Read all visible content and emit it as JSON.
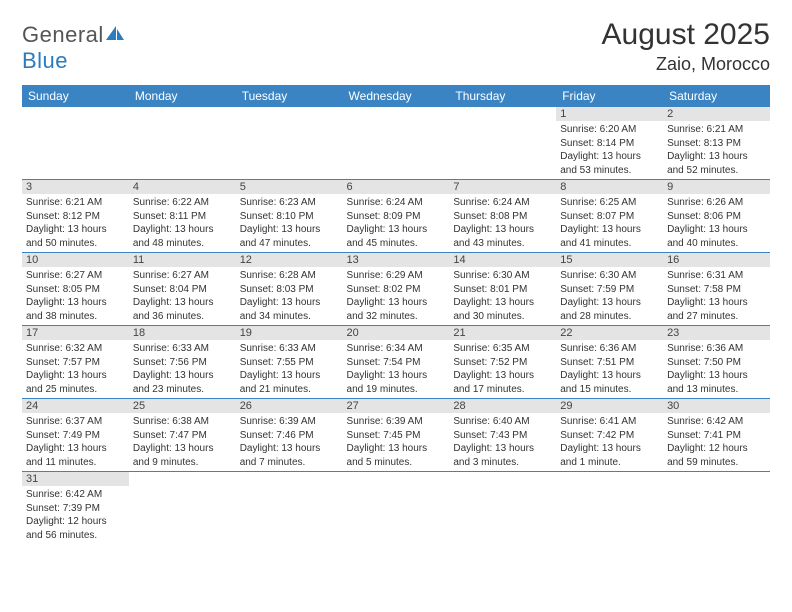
{
  "brand": {
    "text_a": "General",
    "text_b": "Blue"
  },
  "header": {
    "title": "August 2025",
    "location": "Zaio, Morocco"
  },
  "colors": {
    "accent": "#3a84c4",
    "daynum_bg": "#e4e4e4",
    "text": "#333333"
  },
  "dayNames": [
    "Sunday",
    "Monday",
    "Tuesday",
    "Wednesday",
    "Thursday",
    "Friday",
    "Saturday"
  ],
  "weeks": [
    [
      null,
      null,
      null,
      null,
      null,
      {
        "n": "1",
        "sr": "Sunrise: 6:20 AM",
        "ss": "Sunset: 8:14 PM",
        "dl": "Daylight: 13 hours and 53 minutes."
      },
      {
        "n": "2",
        "sr": "Sunrise: 6:21 AM",
        "ss": "Sunset: 8:13 PM",
        "dl": "Daylight: 13 hours and 52 minutes."
      }
    ],
    [
      {
        "n": "3",
        "sr": "Sunrise: 6:21 AM",
        "ss": "Sunset: 8:12 PM",
        "dl": "Daylight: 13 hours and 50 minutes."
      },
      {
        "n": "4",
        "sr": "Sunrise: 6:22 AM",
        "ss": "Sunset: 8:11 PM",
        "dl": "Daylight: 13 hours and 48 minutes."
      },
      {
        "n": "5",
        "sr": "Sunrise: 6:23 AM",
        "ss": "Sunset: 8:10 PM",
        "dl": "Daylight: 13 hours and 47 minutes."
      },
      {
        "n": "6",
        "sr": "Sunrise: 6:24 AM",
        "ss": "Sunset: 8:09 PM",
        "dl": "Daylight: 13 hours and 45 minutes."
      },
      {
        "n": "7",
        "sr": "Sunrise: 6:24 AM",
        "ss": "Sunset: 8:08 PM",
        "dl": "Daylight: 13 hours and 43 minutes."
      },
      {
        "n": "8",
        "sr": "Sunrise: 6:25 AM",
        "ss": "Sunset: 8:07 PM",
        "dl": "Daylight: 13 hours and 41 minutes."
      },
      {
        "n": "9",
        "sr": "Sunrise: 6:26 AM",
        "ss": "Sunset: 8:06 PM",
        "dl": "Daylight: 13 hours and 40 minutes."
      }
    ],
    [
      {
        "n": "10",
        "sr": "Sunrise: 6:27 AM",
        "ss": "Sunset: 8:05 PM",
        "dl": "Daylight: 13 hours and 38 minutes."
      },
      {
        "n": "11",
        "sr": "Sunrise: 6:27 AM",
        "ss": "Sunset: 8:04 PM",
        "dl": "Daylight: 13 hours and 36 minutes."
      },
      {
        "n": "12",
        "sr": "Sunrise: 6:28 AM",
        "ss": "Sunset: 8:03 PM",
        "dl": "Daylight: 13 hours and 34 minutes."
      },
      {
        "n": "13",
        "sr": "Sunrise: 6:29 AM",
        "ss": "Sunset: 8:02 PM",
        "dl": "Daylight: 13 hours and 32 minutes."
      },
      {
        "n": "14",
        "sr": "Sunrise: 6:30 AM",
        "ss": "Sunset: 8:01 PM",
        "dl": "Daylight: 13 hours and 30 minutes."
      },
      {
        "n": "15",
        "sr": "Sunrise: 6:30 AM",
        "ss": "Sunset: 7:59 PM",
        "dl": "Daylight: 13 hours and 28 minutes."
      },
      {
        "n": "16",
        "sr": "Sunrise: 6:31 AM",
        "ss": "Sunset: 7:58 PM",
        "dl": "Daylight: 13 hours and 27 minutes."
      }
    ],
    [
      {
        "n": "17",
        "sr": "Sunrise: 6:32 AM",
        "ss": "Sunset: 7:57 PM",
        "dl": "Daylight: 13 hours and 25 minutes."
      },
      {
        "n": "18",
        "sr": "Sunrise: 6:33 AM",
        "ss": "Sunset: 7:56 PM",
        "dl": "Daylight: 13 hours and 23 minutes."
      },
      {
        "n": "19",
        "sr": "Sunrise: 6:33 AM",
        "ss": "Sunset: 7:55 PM",
        "dl": "Daylight: 13 hours and 21 minutes."
      },
      {
        "n": "20",
        "sr": "Sunrise: 6:34 AM",
        "ss": "Sunset: 7:54 PM",
        "dl": "Daylight: 13 hours and 19 minutes."
      },
      {
        "n": "21",
        "sr": "Sunrise: 6:35 AM",
        "ss": "Sunset: 7:52 PM",
        "dl": "Daylight: 13 hours and 17 minutes."
      },
      {
        "n": "22",
        "sr": "Sunrise: 6:36 AM",
        "ss": "Sunset: 7:51 PM",
        "dl": "Daylight: 13 hours and 15 minutes."
      },
      {
        "n": "23",
        "sr": "Sunrise: 6:36 AM",
        "ss": "Sunset: 7:50 PM",
        "dl": "Daylight: 13 hours and 13 minutes."
      }
    ],
    [
      {
        "n": "24",
        "sr": "Sunrise: 6:37 AM",
        "ss": "Sunset: 7:49 PM",
        "dl": "Daylight: 13 hours and 11 minutes."
      },
      {
        "n": "25",
        "sr": "Sunrise: 6:38 AM",
        "ss": "Sunset: 7:47 PM",
        "dl": "Daylight: 13 hours and 9 minutes."
      },
      {
        "n": "26",
        "sr": "Sunrise: 6:39 AM",
        "ss": "Sunset: 7:46 PM",
        "dl": "Daylight: 13 hours and 7 minutes."
      },
      {
        "n": "27",
        "sr": "Sunrise: 6:39 AM",
        "ss": "Sunset: 7:45 PM",
        "dl": "Daylight: 13 hours and 5 minutes."
      },
      {
        "n": "28",
        "sr": "Sunrise: 6:40 AM",
        "ss": "Sunset: 7:43 PM",
        "dl": "Daylight: 13 hours and 3 minutes."
      },
      {
        "n": "29",
        "sr": "Sunrise: 6:41 AM",
        "ss": "Sunset: 7:42 PM",
        "dl": "Daylight: 13 hours and 1 minute."
      },
      {
        "n": "30",
        "sr": "Sunrise: 6:42 AM",
        "ss": "Sunset: 7:41 PM",
        "dl": "Daylight: 12 hours and 59 minutes."
      }
    ],
    [
      {
        "n": "31",
        "sr": "Sunrise: 6:42 AM",
        "ss": "Sunset: 7:39 PM",
        "dl": "Daylight: 12 hours and 56 minutes."
      },
      null,
      null,
      null,
      null,
      null,
      null
    ]
  ]
}
